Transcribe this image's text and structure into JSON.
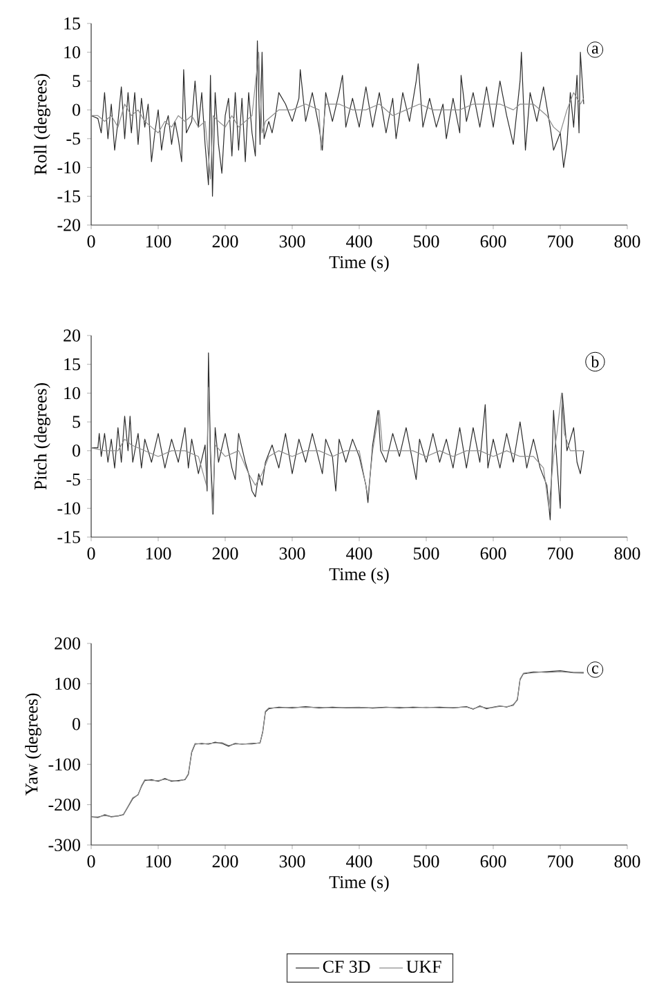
{
  "chart_data": [
    {
      "type": "line",
      "xlabel": "Time (s)",
      "ylabel": "Roll (degrees)",
      "xlim": [
        0,
        800
      ],
      "ylim": [
        -20,
        15
      ],
      "xticks": [
        0,
        100,
        200,
        300,
        400,
        500,
        600,
        700,
        800
      ],
      "yticks": [
        -20,
        -15,
        -10,
        -5,
        0,
        5,
        10,
        15
      ],
      "annotations": [
        "a"
      ],
      "series": [
        {
          "color": "#2a2a2a",
          "x": [
            0,
            10,
            15,
            20,
            25,
            30,
            35,
            40,
            45,
            50,
            55,
            60,
            65,
            70,
            75,
            80,
            85,
            90,
            95,
            100,
            105,
            110,
            115,
            120,
            125,
            130,
            135,
            138,
            142,
            150,
            155,
            160,
            165,
            170,
            175,
            178,
            181,
            185,
            190,
            195,
            200,
            205,
            210,
            215,
            220,
            225,
            230,
            235,
            240,
            245,
            248,
            252,
            255,
            258,
            265,
            270,
            275,
            280,
            290,
            300,
            310,
            312,
            320,
            330,
            340,
            345,
            350,
            360,
            370,
            375,
            380,
            390,
            400,
            410,
            420,
            430,
            440,
            450,
            455,
            465,
            475,
            485,
            488,
            495,
            505,
            515,
            525,
            530,
            540,
            550,
            552,
            560,
            570,
            580,
            590,
            600,
            610,
            620,
            630,
            640,
            642,
            648,
            655,
            665,
            675,
            685,
            690,
            700,
            705,
            710,
            715,
            720,
            725,
            728,
            730,
            735
          ],
          "values": [
            -1,
            -1.5,
            -4,
            3,
            -5,
            1,
            -7,
            -2,
            4,
            -5,
            3,
            -4,
            3,
            -6,
            2,
            -3,
            1,
            -9,
            -4,
            0,
            -7,
            -3,
            -1,
            -6,
            -2,
            -5,
            -9,
            7,
            -4,
            -2,
            5,
            -3,
            3,
            -6,
            -13,
            6,
            -15,
            3,
            -6,
            -11,
            -1,
            2,
            -8,
            3,
            -7,
            2,
            -9,
            3,
            -4,
            -8,
            12,
            -6,
            10,
            -5,
            -2,
            -4,
            -1,
            3,
            1,
            -2,
            2,
            7,
            -2,
            3,
            -3,
            -7,
            3,
            -2,
            3,
            6,
            -3,
            2,
            -3,
            4,
            -3,
            3,
            -4,
            2,
            -5,
            3,
            -2,
            5,
            8,
            -3,
            2,
            -3,
            1,
            -5,
            2,
            -4,
            6,
            -2,
            3,
            -3,
            4,
            -3,
            5,
            -1,
            -6,
            5,
            10,
            -7,
            3,
            -2,
            4,
            -3,
            -7,
            -4,
            -10,
            -6,
            3,
            -3,
            6,
            -4,
            10,
            1
          ]
        },
        {
          "color": "#8c8c8c",
          "x": [
            0,
            10,
            20,
            30,
            40,
            50,
            60,
            70,
            80,
            90,
            100,
            110,
            120,
            130,
            140,
            150,
            160,
            170,
            175,
            178,
            182,
            190,
            200,
            210,
            220,
            230,
            240,
            250,
            255,
            260,
            270,
            280,
            300,
            320,
            340,
            343,
            350,
            370,
            390,
            410,
            430,
            450,
            470,
            490,
            510,
            530,
            550,
            570,
            590,
            610,
            630,
            640,
            660,
            680,
            690,
            700,
            710,
            720,
            730,
            735
          ],
          "values": [
            -1,
            -1,
            -2,
            -1,
            -3,
            1,
            -1,
            0,
            -2,
            -3,
            -4,
            -2,
            -3,
            -1,
            -2,
            -1,
            -3,
            -2,
            -8,
            -12,
            -1,
            -2,
            -3,
            -1,
            -3,
            -2,
            -1,
            10,
            -4,
            -2,
            -1,
            0,
            0,
            1,
            0,
            -7,
            1,
            1,
            0,
            0,
            1,
            -1,
            0,
            1,
            0,
            0,
            0,
            1,
            1,
            1,
            0,
            1,
            1,
            -1,
            -3,
            -4,
            0,
            3,
            1,
            2
          ]
        }
      ]
    },
    {
      "type": "line",
      "xlabel": "Time (s)",
      "ylabel": "Pitch (degrees)",
      "xlim": [
        0,
        800
      ],
      "ylim": [
        -15,
        20
      ],
      "xticks": [
        0,
        100,
        200,
        300,
        400,
        500,
        600,
        700,
        800
      ],
      "yticks": [
        -15,
        -10,
        -5,
        0,
        5,
        10,
        15,
        20
      ],
      "annotations": [
        "b"
      ],
      "series": [
        {
          "color": "#2a2a2a",
          "x": [
            0,
            10,
            12,
            15,
            20,
            25,
            30,
            35,
            40,
            45,
            50,
            55,
            58,
            62,
            70,
            75,
            80,
            90,
            100,
            110,
            120,
            130,
            140,
            145,
            150,
            160,
            170,
            173,
            175,
            178,
            182,
            185,
            190,
            200,
            210,
            215,
            220,
            230,
            235,
            240,
            245,
            250,
            255,
            260,
            270,
            280,
            290,
            300,
            310,
            320,
            330,
            345,
            350,
            360,
            365,
            370,
            380,
            390,
            400,
            410,
            413,
            420,
            428,
            432,
            440,
            450,
            460,
            470,
            480,
            485,
            490,
            500,
            510,
            520,
            530,
            540,
            550,
            560,
            570,
            580,
            588,
            592,
            600,
            610,
            620,
            630,
            640,
            650,
            660,
            670,
            680,
            685,
            690,
            695,
            700,
            703,
            710,
            720,
            725,
            730,
            735
          ],
          "values": [
            0.5,
            0.5,
            3,
            -1,
            3,
            -2,
            2,
            -3,
            4,
            -2,
            6,
            0,
            6,
            -2,
            3,
            -3,
            2,
            -2,
            3,
            -3,
            2,
            -2,
            4,
            -3,
            2,
            -4,
            1,
            -7,
            17,
            0,
            -11,
            4,
            -2,
            3,
            -3,
            -5,
            3,
            -2,
            -4,
            -7,
            -8,
            -4,
            -6,
            -2,
            1,
            -3,
            3,
            -4,
            2,
            -2,
            3,
            -4,
            2,
            -1,
            -7,
            2,
            -2,
            2,
            -1,
            -6,
            -9,
            1,
            7,
            0,
            -2,
            3,
            -1,
            4,
            -2,
            -5,
            2,
            -2,
            3,
            -2,
            2,
            -3,
            4,
            -3,
            4,
            -2,
            8,
            -3,
            2,
            -3,
            3,
            -2,
            5,
            -3,
            2,
            -3,
            -6,
            -12,
            7,
            -2,
            -10,
            10,
            0,
            4,
            -2,
            -4,
            0
          ]
        },
        {
          "color": "#8c8c8c",
          "x": [
            0,
            20,
            40,
            50,
            60,
            80,
            100,
            120,
            140,
            160,
            172,
            175,
            178,
            181,
            185,
            200,
            220,
            235,
            245,
            255,
            265,
            280,
            300,
            320,
            340,
            360,
            380,
            400,
            413,
            420,
            430,
            435,
            450,
            480,
            500,
            520,
            540,
            560,
            580,
            600,
            620,
            640,
            660,
            675,
            683,
            690,
            695,
            702,
            706,
            715,
            725,
            735
          ],
          "values": [
            0.5,
            0,
            0,
            2,
            1,
            0,
            -1,
            0,
            0,
            -1,
            -6,
            11,
            -2,
            -11,
            1,
            -1,
            0,
            -4,
            -6,
            -4,
            -1,
            0,
            -1,
            0,
            0,
            -1,
            0,
            0,
            -8,
            0,
            7,
            0,
            0,
            0,
            -1,
            0,
            -1,
            0,
            0,
            -1,
            0,
            -1,
            -1,
            -3,
            -10,
            -1,
            3,
            10,
            3,
            0,
            0,
            0
          ]
        }
      ]
    },
    {
      "type": "line",
      "xlabel": "Time (s)",
      "ylabel": "Yaw (degrees)",
      "xlim": [
        0,
        800
      ],
      "ylim": [
        -300,
        200
      ],
      "xticks": [
        0,
        100,
        200,
        300,
        400,
        500,
        600,
        700,
        800
      ],
      "yticks": [
        -300,
        -200,
        -100,
        0,
        100,
        200
      ],
      "annotations": [
        "c"
      ],
      "legend": "bottom",
      "series": [
        {
          "name": "CF 3D",
          "color": "#2a2a2a",
          "x": [
            0,
            10,
            20,
            30,
            40,
            48,
            55,
            62,
            70,
            75,
            80,
            90,
            100,
            110,
            120,
            130,
            140,
            145,
            150,
            155,
            165,
            175,
            185,
            195,
            205,
            215,
            225,
            240,
            252,
            256,
            260,
            265,
            280,
            300,
            320,
            340,
            360,
            380,
            400,
            420,
            440,
            460,
            480,
            500,
            520,
            540,
            560,
            570,
            580,
            590,
            600,
            610,
            620,
            630,
            636,
            640,
            645,
            660,
            680,
            700,
            720,
            735
          ],
          "values": [
            -230,
            -232,
            -225,
            -230,
            -228,
            -225,
            -205,
            -185,
            -175,
            -155,
            -140,
            -138,
            -142,
            -135,
            -142,
            -140,
            -138,
            -125,
            -70,
            -50,
            -48,
            -50,
            -45,
            -48,
            -55,
            -48,
            -50,
            -48,
            -47,
            -20,
            30,
            38,
            42,
            40,
            43,
            40,
            42,
            40,
            41,
            40,
            42,
            40,
            42,
            41,
            42,
            40,
            43,
            37,
            45,
            38,
            42,
            45,
            42,
            48,
            60,
            110,
            125,
            128,
            130,
            132,
            128,
            128
          ]
        },
        {
          "name": "UKF",
          "color": "#8c8c8c",
          "x": [
            0,
            10,
            20,
            30,
            40,
            48,
            55,
            62,
            70,
            75,
            80,
            90,
            100,
            110,
            120,
            130,
            140,
            145,
            150,
            155,
            165,
            175,
            185,
            195,
            205,
            215,
            225,
            240,
            252,
            256,
            260,
            265,
            280,
            300,
            320,
            340,
            360,
            380,
            400,
            420,
            440,
            460,
            480,
            500,
            520,
            540,
            560,
            570,
            580,
            590,
            600,
            610,
            620,
            630,
            636,
            640,
            645,
            660,
            680,
            700,
            720,
            735
          ],
          "values": [
            -230,
            -230,
            -227,
            -229,
            -228,
            -224,
            -204,
            -183,
            -176,
            -153,
            -138,
            -140,
            -140,
            -137,
            -140,
            -142,
            -137,
            -123,
            -68,
            -48,
            -50,
            -48,
            -47,
            -46,
            -53,
            -50,
            -49,
            -50,
            -46,
            -18,
            32,
            40,
            40,
            42,
            41,
            42,
            40,
            41,
            42,
            39,
            41,
            42,
            40,
            42,
            40,
            41,
            42,
            38,
            43,
            40,
            41,
            44,
            43,
            46,
            62,
            112,
            126,
            130,
            128,
            130,
            127,
            126
          ]
        }
      ]
    }
  ]
}
